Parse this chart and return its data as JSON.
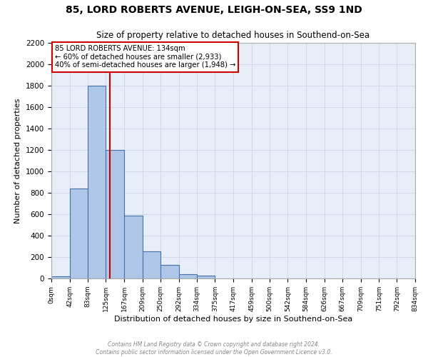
{
  "title": "85, LORD ROBERTS AVENUE, LEIGH-ON-SEA, SS9 1ND",
  "subtitle": "Size of property relative to detached houses in Southend-on-Sea",
  "xlabel": "Distribution of detached houses by size in Southend-on-Sea",
  "ylabel": "Number of detached properties",
  "bin_edges": [
    0,
    42,
    83,
    125,
    167,
    209,
    250,
    292,
    334,
    375,
    417,
    459,
    500,
    542,
    584,
    626,
    667,
    709,
    751,
    792,
    834
  ],
  "bin_counts": [
    20,
    840,
    1800,
    1200,
    590,
    255,
    125,
    40,
    25,
    0,
    0,
    0,
    0,
    0,
    0,
    0,
    0,
    0,
    0,
    0
  ],
  "bar_color": "#aec6e8",
  "bar_edge_color": "#4472a8",
  "vline_x": 134,
  "vline_color": "#cc0000",
  "annotation_text_line1": "85 LORD ROBERTS AVENUE: 134sqm",
  "annotation_text_line2": "← 60% of detached houses are smaller (2,933)",
  "annotation_text_line3": "40% of semi-detached houses are larger (1,948) →",
  "annotation_box_color": "#ffffff",
  "annotation_box_edge_color": "#cc0000",
  "xlim": [
    0,
    834
  ],
  "ylim": [
    0,
    2200
  ],
  "yticks": [
    0,
    200,
    400,
    600,
    800,
    1000,
    1200,
    1400,
    1600,
    1800,
    2000,
    2200
  ],
  "xtick_labels": [
    "0sqm",
    "42sqm",
    "83sqm",
    "125sqm",
    "167sqm",
    "209sqm",
    "250sqm",
    "292sqm",
    "334sqm",
    "375sqm",
    "417sqm",
    "459sqm",
    "500sqm",
    "542sqm",
    "584sqm",
    "626sqm",
    "667sqm",
    "709sqm",
    "751sqm",
    "792sqm",
    "834sqm"
  ],
  "grid_color": "#c8d4e8",
  "background_color": "#e8eef8",
  "title_bg_color": "#ffffff",
  "footer_line1": "Contains HM Land Registry data © Crown copyright and database right 2024.",
  "footer_line2": "Contains public sector information licensed under the Open Government Licence v3.0."
}
